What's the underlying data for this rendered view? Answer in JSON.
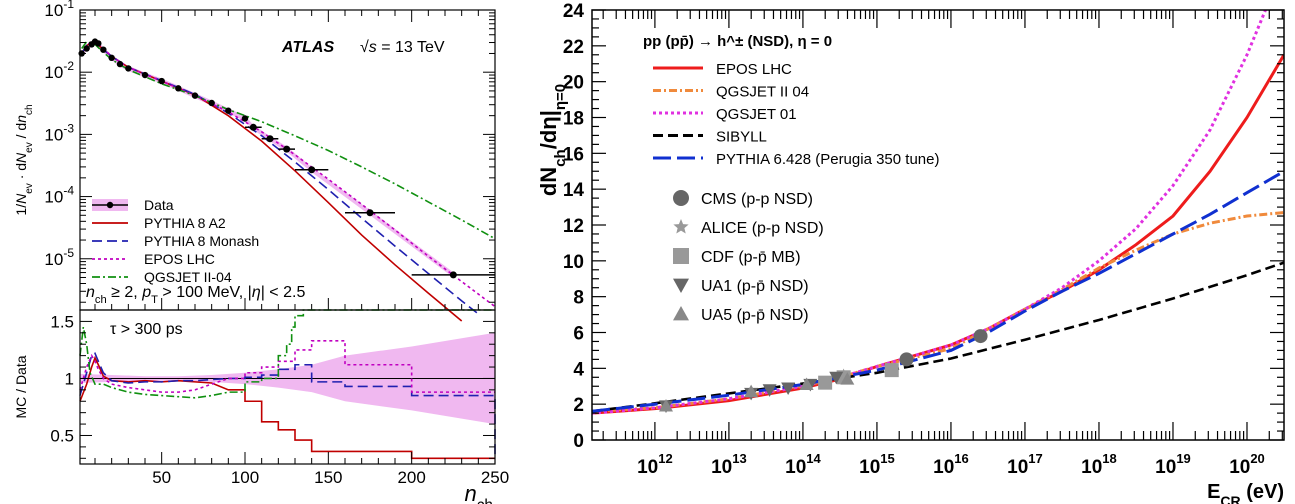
{
  "chart_data": [
    {
      "type": "line",
      "panel": "top-left",
      "xlim": [
        1,
        250
      ],
      "ylim": [
        1.5e-06,
        0.1
      ],
      "yscale": "log",
      "xlabel": "n_ch",
      "ylabel": "1/N_ev · dN_ev / dn_ch",
      "xticks": [
        50,
        100,
        150,
        200,
        250
      ],
      "yticks": [
        "10^-5",
        "10^-4",
        "10^-3",
        "10^-2",
        "10^-1"
      ],
      "annotations": {
        "atlas": "ATLAS",
        "energy": "√s = 13 TeV",
        "cuts": "n_ch ≥ 2, p_T > 100 MeV, |η| < 2.5"
      },
      "legend": [
        {
          "name": "Data",
          "color": "#000000",
          "style": "marker-band"
        },
        {
          "name": "PYTHIA 8 A2",
          "color": "#c00000",
          "style": "solid"
        },
        {
          "name": "PYTHIA 8 Monash",
          "color": "#2020b0",
          "style": "dashed"
        },
        {
          "name": "EPOS LHC",
          "color": "#c000c0",
          "style": "dotted"
        },
        {
          "name": "QGSJET II-04",
          "color": "#109010",
          "style": "dashdot"
        }
      ],
      "series": [
        {
          "name": "Data",
          "x": [
            2,
            5,
            8,
            10,
            12,
            15,
            20,
            25,
            30,
            40,
            50,
            60,
            70,
            80,
            90,
            100,
            105,
            115,
            125,
            140,
            175,
            225
          ],
          "y": [
            0.02,
            0.024,
            0.028,
            0.031,
            0.029,
            0.023,
            0.017,
            0.0135,
            0.0115,
            0.009,
            0.0072,
            0.0055,
            0.0042,
            0.0032,
            0.0024,
            0.0018,
            0.0013,
            0.00085,
            0.00058,
            0.00027,
            5.5e-05,
            5.5e-06
          ]
        },
        {
          "name": "PYTHIA 8 A2",
          "x": [
            2,
            5,
            10,
            15,
            20,
            30,
            50,
            70,
            90,
            110,
            130,
            150,
            170,
            190,
            210,
            230
          ],
          "y": [
            0.02,
            0.027,
            0.031,
            0.023,
            0.018,
            0.012,
            0.0072,
            0.0043,
            0.002,
            0.00078,
            0.00026,
            8e-05,
            2.4e-05,
            8e-06,
            2.8e-06,
            1e-06
          ]
        },
        {
          "name": "PYTHIA 8 Monash",
          "x": [
            2,
            5,
            10,
            15,
            20,
            30,
            50,
            70,
            90,
            110,
            130,
            150,
            170,
            190,
            210,
            230,
            240
          ],
          "y": [
            0.02,
            0.027,
            0.031,
            0.023,
            0.018,
            0.012,
            0.0073,
            0.0044,
            0.0022,
            0.00095,
            0.00036,
            0.00013,
            4.5e-05,
            1.6e-05,
            5.8e-06,
            2.1e-06,
            1.3e-06
          ]
        },
        {
          "name": "EPOS LHC",
          "x": [
            2,
            5,
            10,
            15,
            20,
            30,
            50,
            70,
            90,
            110,
            130,
            150,
            170,
            190,
            210,
            230,
            250
          ],
          "y": [
            0.02,
            0.028,
            0.032,
            0.024,
            0.018,
            0.012,
            0.0072,
            0.0042,
            0.0023,
            0.0011,
            0.00047,
            0.00019,
            7.5e-05,
            2.9e-05,
            1.1e-05,
            4.3e-06,
            1.7e-06
          ]
        },
        {
          "name": "QGSJET II-04",
          "x": [
            2,
            5,
            10,
            15,
            20,
            30,
            50,
            70,
            90,
            110,
            130,
            150,
            170,
            190,
            210,
            230,
            250
          ],
          "y": [
            0.024,
            0.031,
            0.028,
            0.021,
            0.016,
            0.011,
            0.0065,
            0.0042,
            0.0025,
            0.0016,
            0.00095,
            0.00055,
            0.0003,
            0.00016,
            8.2e-05,
            4.2e-05,
            2.1e-05
          ]
        }
      ]
    },
    {
      "type": "line",
      "panel": "bottom-left",
      "xlim": [
        1,
        250
      ],
      "ylim": [
        0.25,
        1.6
      ],
      "xlabel": "n_ch",
      "ylabel": "MC / Data",
      "xticks": [
        50,
        100,
        150,
        200,
        250
      ],
      "yticks": [
        0.5,
        1,
        1.5
      ],
      "annotations": {
        "tau": "τ > 300 ps"
      },
      "series": [
        {
          "name": "PYTHIA 8 A2",
          "x": [
            1,
            5,
            8,
            10,
            12,
            15,
            20,
            30,
            40,
            50,
            60,
            70,
            80,
            90,
            100,
            110,
            120,
            130,
            140,
            160,
            200,
            250
          ],
          "y": [
            0.8,
            0.95,
            1.1,
            1.18,
            1.12,
            1.02,
            0.98,
            0.97,
            0.98,
            0.97,
            0.98,
            0.97,
            0.96,
            0.9,
            0.8,
            0.62,
            0.55,
            0.46,
            0.36,
            0.36,
            0.3,
            0.3
          ]
        },
        {
          "name": "PYTHIA 8 Monash",
          "x": [
            1,
            5,
            8,
            10,
            12,
            15,
            20,
            30,
            40,
            50,
            60,
            70,
            80,
            90,
            100,
            110,
            120,
            130,
            140,
            160,
            200,
            250
          ],
          "y": [
            0.85,
            1.05,
            1.2,
            1.22,
            1.15,
            1.05,
            0.98,
            0.96,
            0.97,
            0.97,
            0.98,
            0.98,
            0.99,
            1.0,
            1.01,
            1.03,
            1.08,
            1.12,
            0.97,
            0.93,
            0.85,
            0.3
          ]
        },
        {
          "name": "EPOS LHC",
          "x": [
            1,
            5,
            8,
            10,
            12,
            15,
            20,
            30,
            40,
            50,
            60,
            70,
            80,
            90,
            100,
            110,
            120,
            130,
            140,
            160,
            200,
            250
          ],
          "y": [
            0.9,
            1.1,
            1.2,
            1.15,
            1.08,
            1.0,
            0.95,
            0.92,
            0.9,
            0.88,
            0.88,
            0.9,
            0.95,
            1.0,
            1.05,
            1.1,
            1.15,
            1.25,
            1.33,
            1.12,
            0.88,
            0.88
          ]
        },
        {
          "name": "QGSJET II-04",
          "x": [
            1,
            3,
            5,
            7,
            10,
            15,
            20,
            30,
            40,
            50,
            60,
            70,
            80,
            90,
            100,
            110,
            120,
            125,
            128,
            130,
            135,
            250
          ],
          "y": [
            1.2,
            1.45,
            1.3,
            1.05,
            0.95,
            0.95,
            0.92,
            0.88,
            0.86,
            0.85,
            0.84,
            0.83,
            0.85,
            0.88,
            0.97,
            1.0,
            1.2,
            1.3,
            1.45,
            1.55,
            1.6,
            1.6
          ]
        }
      ]
    },
    {
      "type": "line",
      "panel": "right",
      "xlim": [
        11.15,
        20.5
      ],
      "xscale": "log",
      "ylim": [
        0,
        24
      ],
      "xlabel": "E_CR (eV)",
      "ylabel": "dN_ch/dη|_η=0",
      "xticks": [
        "10^12",
        "10^13",
        "10^14",
        "10^15",
        "10^16",
        "10^17",
        "10^18",
        "10^19",
        "10^20"
      ],
      "yticks": [
        0,
        2,
        4,
        6,
        8,
        10,
        12,
        14,
        16,
        18,
        20,
        22,
        24
      ],
      "legend_title": "pp (pp̄) → h^± (NSD), η = 0",
      "legend": [
        {
          "name": "EPOS LHC",
          "color": "#ee1c1c",
          "style": "solid"
        },
        {
          "name": "QGSJET II 04",
          "color": "#f08a3c",
          "style": "dashdot"
        },
        {
          "name": "QGSJET 01",
          "color": "#e030e0",
          "style": "dotted"
        },
        {
          "name": "SIBYLL",
          "color": "#000000",
          "style": "dashed"
        },
        {
          "name": "PYTHIA 6.428 (Perugia 350 tune)",
          "color": "#1030d0",
          "style": "longdash"
        }
      ],
      "markers_legend": [
        "CMS (p-p NSD)",
        "ALICE (p-p NSD)",
        "CDF (p-p̄ MB)",
        "UA1 (p-p̄ NSD)",
        "UA5 (p-p̄ NSD)"
      ],
      "series": [
        {
          "name": "EPOS LHC",
          "x": [
            11.15,
            12,
            13,
            14,
            14.5,
            15,
            15.5,
            16,
            16.5,
            17,
            17.5,
            18,
            18.5,
            19,
            19.5,
            20,
            20.5
          ],
          "y": [
            1.5,
            1.75,
            2.2,
            2.9,
            3.4,
            4.1,
            4.7,
            5.3,
            6.2,
            7.3,
            8.3,
            9.5,
            10.9,
            12.5,
            15.0,
            18.0,
            21.5
          ]
        },
        {
          "name": "QGSJET II 04",
          "x": [
            11.15,
            12,
            13,
            14,
            14.5,
            15,
            15.5,
            16,
            16.5,
            17,
            17.5,
            18,
            18.5,
            19,
            19.5,
            20,
            20.5
          ],
          "y": [
            1.6,
            1.8,
            2.3,
            3.0,
            3.5,
            4.1,
            4.6,
            5.1,
            6.2,
            7.3,
            8.4,
            9.6,
            10.6,
            11.5,
            12.1,
            12.5,
            12.7
          ]
        },
        {
          "name": "QGSJET 01",
          "x": [
            11.15,
            12,
            13,
            14,
            14.5,
            15,
            15.5,
            16,
            16.5,
            17,
            17.5,
            18,
            18.5,
            19,
            19.5,
            20,
            20.3
          ],
          "y": [
            1.5,
            1.8,
            2.3,
            3.0,
            3.5,
            4.1,
            4.7,
            5.3,
            6.2,
            7.3,
            8.5,
            10.0,
            11.8,
            14.2,
            17.3,
            21.5,
            24.5
          ]
        },
        {
          "name": "SIBYLL",
          "x": [
            11.15,
            12,
            13,
            14,
            15,
            16,
            17,
            18,
            19,
            20,
            20.5
          ],
          "y": [
            1.6,
            2.05,
            2.6,
            3.15,
            3.75,
            4.55,
            5.6,
            6.7,
            7.9,
            9.2,
            9.9
          ]
        },
        {
          "name": "PYTHIA 6.428 (Perugia 350 tune)",
          "x": [
            11.15,
            12,
            13,
            14,
            15,
            16,
            16.5,
            17,
            17.5,
            18,
            18.5,
            19,
            19.5,
            20,
            20.5
          ],
          "y": [
            1.6,
            2.0,
            2.5,
            3.1,
            3.9,
            5.0,
            6.0,
            7.2,
            8.3,
            9.3,
            10.4,
            11.5,
            12.6,
            13.8,
            15.0
          ]
        },
        {
          "name": "CMS (p-p NSD)",
          "marker": "circle",
          "x": [
            15.4,
            16.4
          ],
          "y": [
            4.5,
            5.8
          ]
        },
        {
          "name": "ALICE (p-p NSD)",
          "marker": "star",
          "x": [
            14.55
          ],
          "y": [
            3.6
          ]
        },
        {
          "name": "CDF (p-p̄ MB)",
          "marker": "square",
          "x": [
            14.3,
            14.55,
            15.2
          ],
          "y": [
            3.2,
            3.5,
            3.9
          ]
        },
        {
          "name": "UA1 (p-p̄ NSD)",
          "marker": "triangle-down",
          "x": [
            12.15,
            13.3,
            13.55,
            13.8,
            14.1,
            14.45
          ],
          "y": [
            1.9,
            2.6,
            2.8,
            2.9,
            3.1,
            3.5
          ]
        },
        {
          "name": "UA5 (p-p̄ NSD)",
          "marker": "triangle-up",
          "x": [
            12.15,
            13.3,
            14.05,
            14.6
          ],
          "y": [
            1.9,
            2.7,
            3.1,
            3.4
          ]
        }
      ]
    }
  ]
}
